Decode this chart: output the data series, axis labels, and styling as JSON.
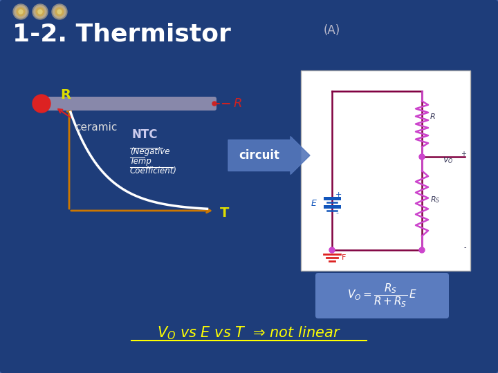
{
  "title": "1-2. Thermistor",
  "title_color": "#FFFFFF",
  "title_fontsize": 26,
  "bg_color": "#1e3d7a",
  "bg_inner": "#243d7a",
  "label_A": "(A)",
  "label_circuit": "circuit",
  "label_NTC": "NTC",
  "label_ceramic": "ceramic",
  "label_R_axis": "R",
  "label_T_axis": "T",
  "bottom_text_color": "#FFFF00",
  "circles_colors": [
    "#cc8833",
    "#cc8833",
    "#cc8833"
  ],
  "arrow_color": "#5577bb",
  "circuit_bg": "#FFFFFF",
  "circuit_line_color": "#800040",
  "resistor_color": "#cc44cc",
  "node_color": "#cc44cc",
  "formula_bg": "#6688cc",
  "graph_curve_color": "#FFFFFF",
  "graph_axis_color": "#cc7700",
  "graph_R_color": "#dddd00",
  "graph_T_color": "#dddd00",
  "thermistor_rod_color": "#8888aa",
  "thermistor_dot_color": "#dd2222",
  "thermistor_R_color": "#cc2222",
  "ntc_text_color": "#ccccee",
  "ntc_sub_color": "#ffffff",
  "battery_color": "#1155bb",
  "ground_color": "#dd2222",
  "E_label_color": "#1155bb",
  "circuit_text_color": "#333355"
}
